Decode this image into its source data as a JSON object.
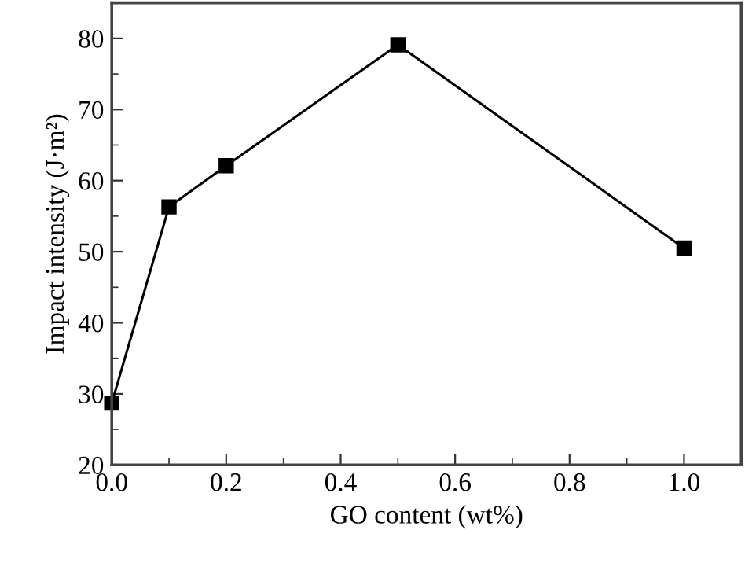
{
  "chart_data": {
    "type": "line",
    "xlabel": "GO content (wt%)",
    "ylabel": "Impact intensity (J·m²)",
    "x": [
      0.0,
      0.1,
      0.2,
      0.5,
      1.0
    ],
    "series": [
      {
        "color": "#000000",
        "values": [
          28.7,
          56.3,
          62.1,
          79.1,
          50.5
        ]
      }
    ],
    "xlim": [
      0,
      1.1
    ],
    "ylim": [
      20,
      85
    ],
    "xticks": [
      {
        "value": 0,
        "label": "0.0"
      },
      0.2,
      0.4,
      0.6,
      0.8,
      {
        "value": 1.0,
        "label": "1.0"
      }
    ],
    "yticks": [
      20,
      30,
      40,
      50,
      60,
      70,
      80
    ],
    "marker": "square",
    "line_style": "solid",
    "grid": false,
    "legend": false
  }
}
